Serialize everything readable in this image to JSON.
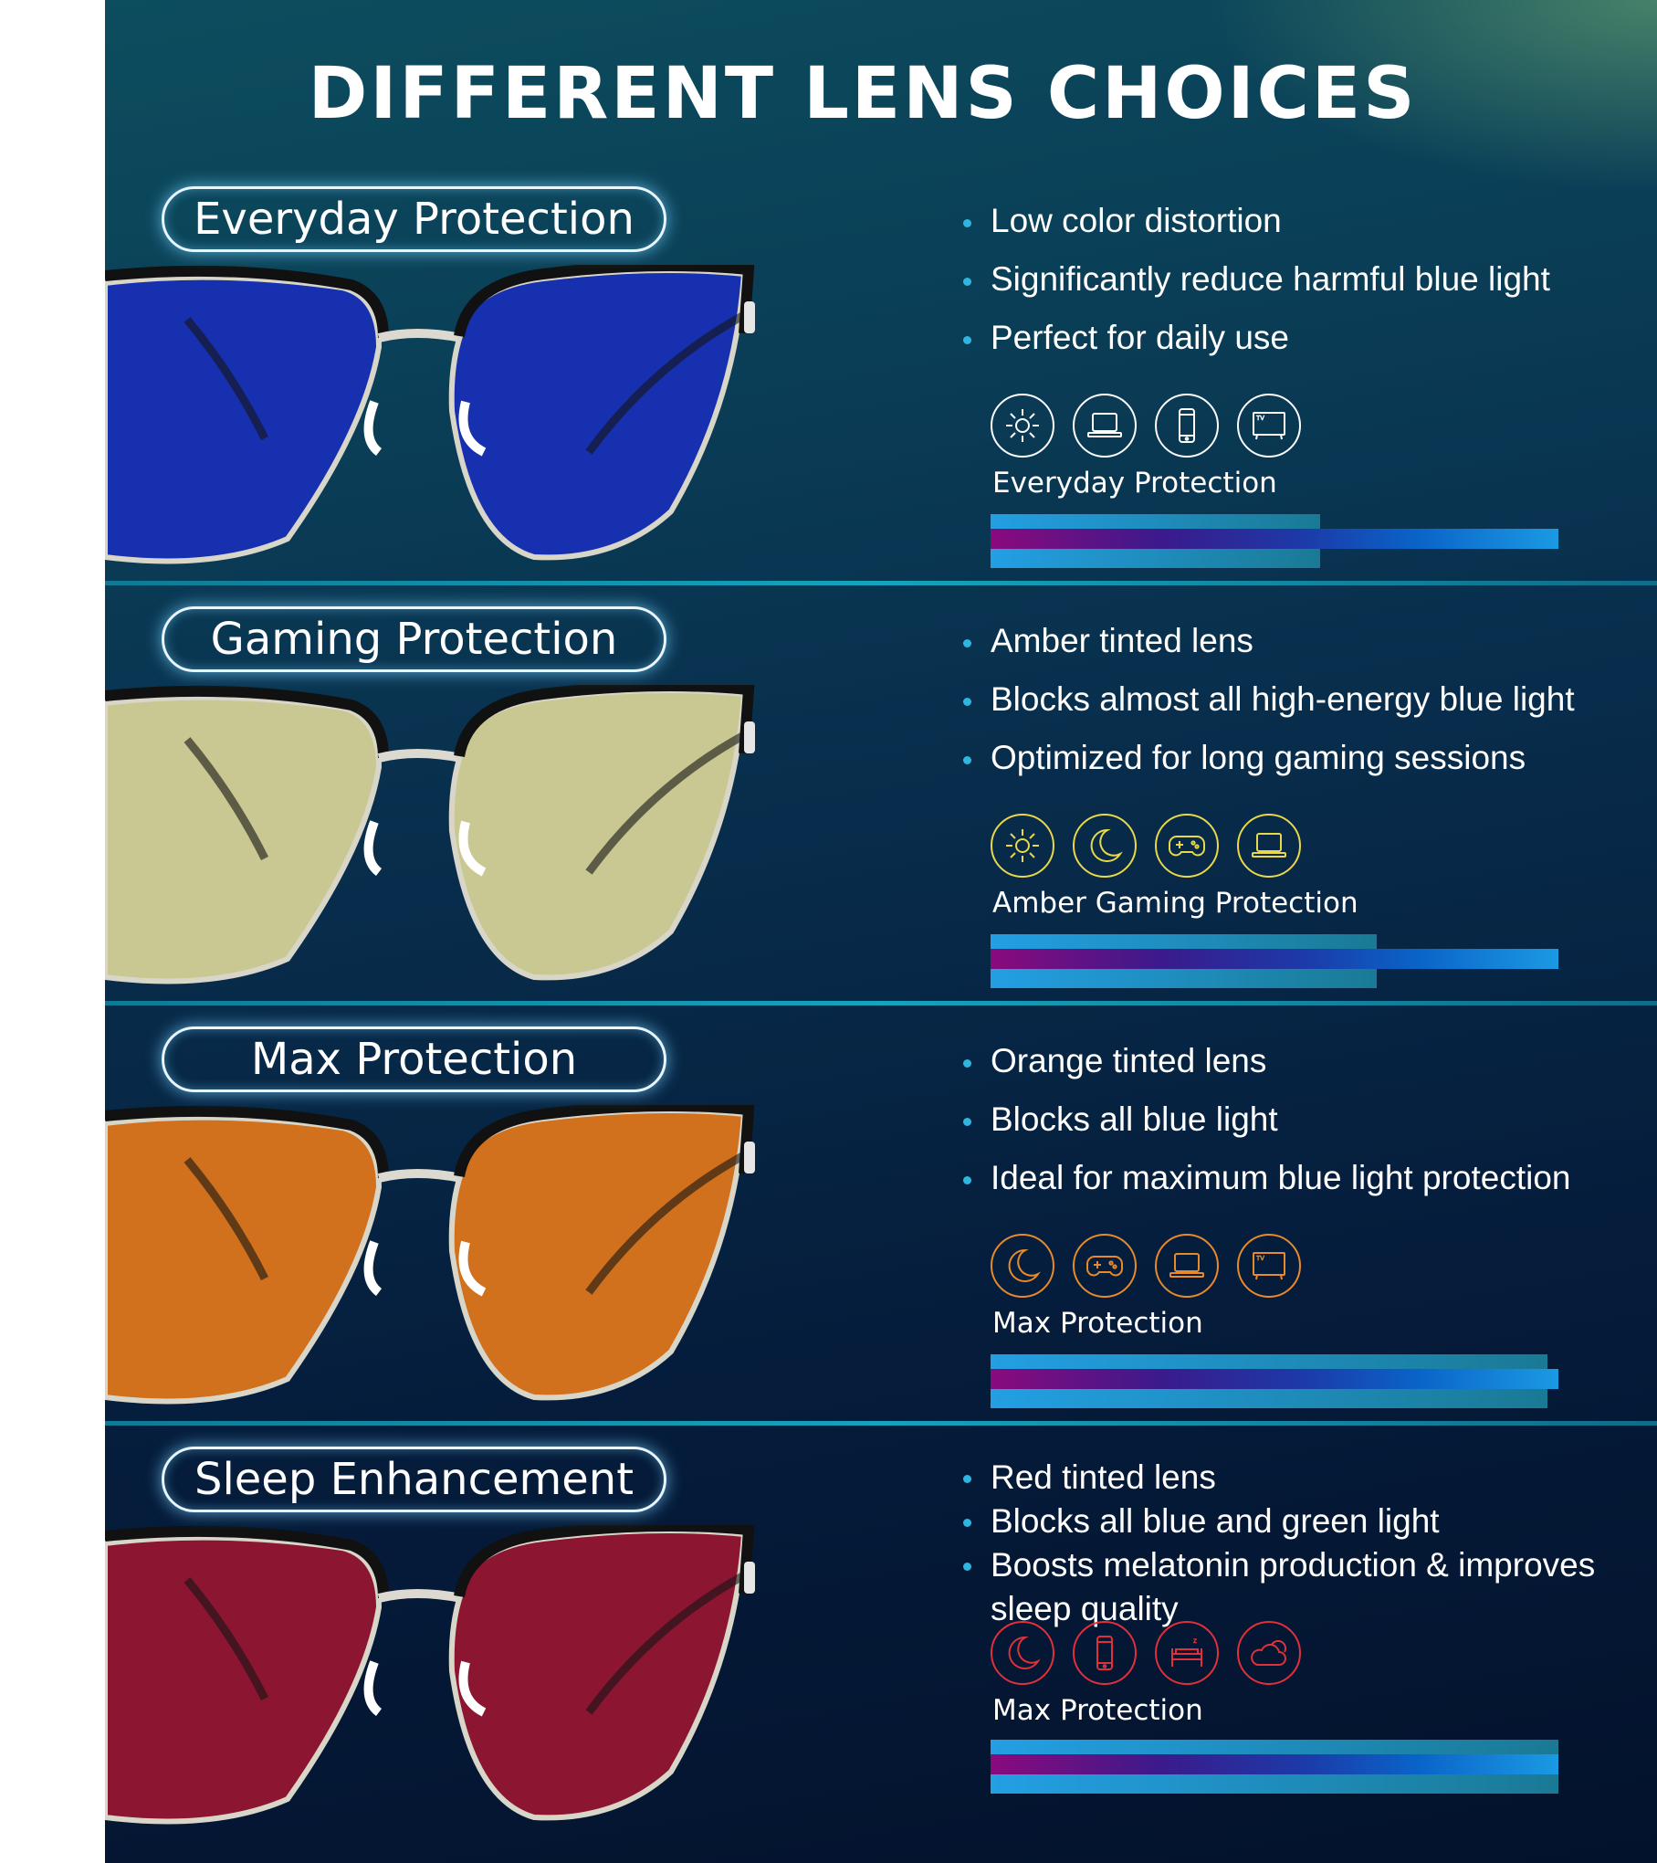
{
  "title": "DIFFERENT LENS CHOICES",
  "sections": [
    {
      "name": "Everyday Protection",
      "lens_color": "#1730b0",
      "icon_color": "#ffffff",
      "bullets": [
        "Low color distortion",
        "Significantly reduce harmful blue light",
        "Perfect for daily use"
      ],
      "icons": [
        "sun-icon",
        "laptop-icon",
        "phone-icon",
        "tv-icon"
      ],
      "label": "Everyday Protection",
      "protection_level": 0.58
    },
    {
      "name": "Gaming Protection",
      "lens_color": "#c9c892",
      "icon_color": "#e8d84a",
      "bullets": [
        "Amber tinted lens",
        "Blocks almost all high-energy blue light",
        "Optimized for long gaming sessions"
      ],
      "icons": [
        "sun-icon",
        "moon-icon",
        "gamepad-icon",
        "laptop-icon"
      ],
      "label": "Amber Gaming Protection",
      "protection_level": 0.68
    },
    {
      "name": "Max Protection",
      "lens_color": "#d1701d",
      "icon_color": "#e88a2a",
      "bullets": [
        "Orange tinted lens",
        "Blocks all blue light",
        "Ideal for maximum blue light protection"
      ],
      "icons": [
        "moon-icon",
        "gamepad-icon",
        "laptop-icon",
        "tv-icon"
      ],
      "label": "Max Protection",
      "protection_level": 0.98
    },
    {
      "name": "Sleep Enhancement",
      "lens_color": "#8c1532",
      "icon_color": "#e0303a",
      "bullets": [
        "Red tinted lens",
        "Blocks all blue and green light",
        "Boosts melatonin production & improves",
        "sleep quality"
      ],
      "icons": [
        "moon-icon",
        "phone-icon",
        "bed-icon",
        "cloud-icon"
      ],
      "label": "Max Protection",
      "protection_level": 1.0
    }
  ]
}
